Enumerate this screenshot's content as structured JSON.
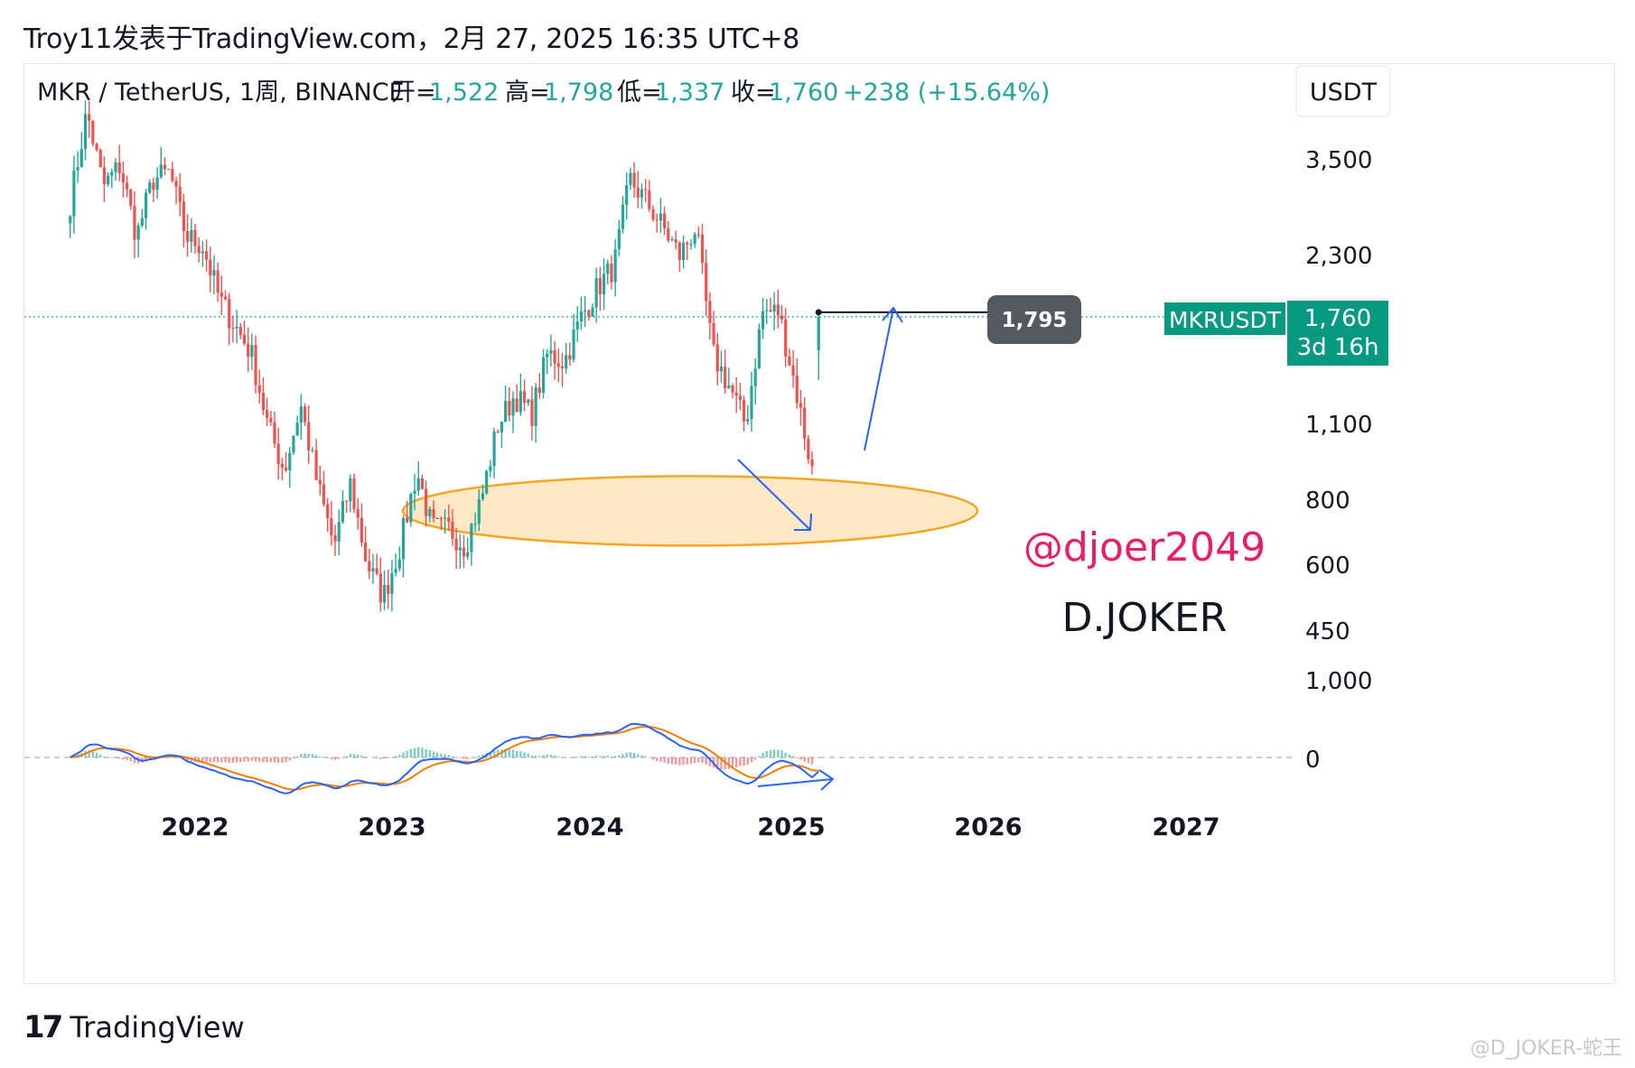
{
  "header": {
    "text": "Troy11发表于TradingView.com，2月 27, 2025 16:35 UTC+8"
  },
  "legend": {
    "symbol": "MKR / TetherUS, 1周, BINANCE",
    "open_label": "开=",
    "open": "1,522",
    "high_label": "高=",
    "high": "1,798",
    "low_label": "低=",
    "low": "1,337",
    "close_label": "收=",
    "close": "1,760",
    "change": "+238 (+15.64%)"
  },
  "currency_button": "USDT",
  "price_tag": {
    "symbol": "MKRUSDT",
    "price": "1,760",
    "countdown": "3d 16h"
  },
  "level_label": "1,795",
  "annotations": {
    "handle": "@djoer2049",
    "author": "D.JOKER"
  },
  "footer": {
    "logo_text": "TradingView",
    "watermark": "@D_JOKER-蛇王"
  },
  "colors": {
    "up": "#26a69a",
    "down": "#ef5350",
    "macd": "#2962ff",
    "signal": "#f57c00",
    "handle": "#e91e63",
    "tag": "#089981"
  },
  "chart_data": {
    "type": "candlestick",
    "timeframe": "1W",
    "y_scale": "log",
    "y_ticks": [
      3500,
      2300,
      1100,
      800,
      600,
      450
    ],
    "y_tick_labels": [
      "3,500",
      "2,300",
      "1,100",
      "800",
      "600",
      "450"
    ],
    "x_ticks": [
      "2022",
      "2023",
      "2024",
      "2025",
      "2026",
      "2027"
    ],
    "last": {
      "open": 1522,
      "high": 1798,
      "low": 1337,
      "close": 1760,
      "change": 238,
      "change_pct": 15.64
    },
    "horizontal_level": 1795,
    "close_path": [
      [
        "2021-05",
        2900
      ],
      [
        "2021-06",
        4300
      ],
      [
        "2021-07",
        3100
      ],
      [
        "2021-08",
        3400
      ],
      [
        "2021-09",
        2500
      ],
      [
        "2021-10",
        3200
      ],
      [
        "2021-11",
        3300
      ],
      [
        "2021-12",
        2500
      ],
      [
        "2022-01",
        2400
      ],
      [
        "2022-02",
        1900
      ],
      [
        "2022-03",
        1700
      ],
      [
        "2022-04",
        1500
      ],
      [
        "2022-05",
        1100
      ],
      [
        "2022-06",
        900
      ],
      [
        "2022-07",
        1200
      ],
      [
        "2022-08",
        850
      ],
      [
        "2022-09",
        650
      ],
      [
        "2022-10",
        850
      ],
      [
        "2022-11",
        600
      ],
      [
        "2022-12",
        520
      ],
      [
        "2023-01",
        650
      ],
      [
        "2023-02",
        900
      ],
      [
        "2023-03",
        700
      ],
      [
        "2023-04",
        700
      ],
      [
        "2023-05",
        650
      ],
      [
        "2023-06",
        800
      ],
      [
        "2023-07",
        1100
      ],
      [
        "2023-08",
        1250
      ],
      [
        "2023-09",
        1150
      ],
      [
        "2023-10",
        1500
      ],
      [
        "2023-11",
        1450
      ],
      [
        "2023-12",
        1750
      ],
      [
        "2024-01",
        2000
      ],
      [
        "2024-02",
        2200
      ],
      [
        "2024-03",
        3200
      ],
      [
        "2024-04",
        2900
      ],
      [
        "2024-05",
        2600
      ],
      [
        "2024-06",
        2300
      ],
      [
        "2024-07",
        2600
      ],
      [
        "2024-08",
        1500
      ],
      [
        "2024-09",
        1300
      ],
      [
        "2024-10",
        1100
      ],
      [
        "2024-11",
        1800
      ],
      [
        "2024-12",
        1800
      ],
      [
        "2025-01",
        1300
      ],
      [
        "2025-02",
        900
      ],
      [
        "2025-02-27",
        1760
      ]
    ],
    "support_zone": {
      "from": 650,
      "to": 880
    },
    "macd_panel": {
      "tick_labels": [
        "1,000",
        "0"
      ]
    }
  }
}
